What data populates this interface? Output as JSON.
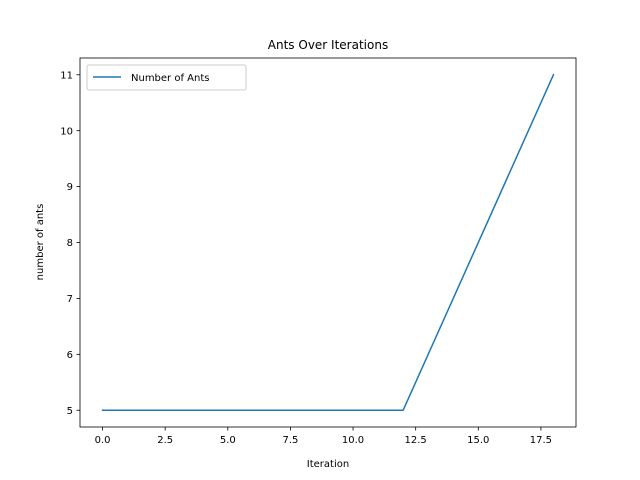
{
  "chart_data": {
    "type": "line",
    "title": "Ants Over Iterations",
    "xlabel": "Iteration",
    "ylabel": "number of ants",
    "xlim": [
      -0.9,
      18.9
    ],
    "ylim": [
      4.7,
      11.3
    ],
    "xticks": [
      0,
      2.5,
      5,
      7.5,
      10,
      12.5,
      15,
      17.5
    ],
    "xtick_labels": [
      "0.0",
      "2.5",
      "5.0",
      "7.5",
      "10.0",
      "12.5",
      "15.0",
      "17.5"
    ],
    "yticks": [
      5,
      6,
      7,
      8,
      9,
      10,
      11
    ],
    "ytick_labels": [
      "5",
      "6",
      "7",
      "8",
      "9",
      "10",
      "11"
    ],
    "grid": false,
    "legend_position": "upper left",
    "series": [
      {
        "name": "Number of Ants",
        "color": "#1f77b4",
        "x": [
          0,
          12,
          18
        ],
        "y": [
          5,
          5,
          11
        ]
      }
    ]
  }
}
